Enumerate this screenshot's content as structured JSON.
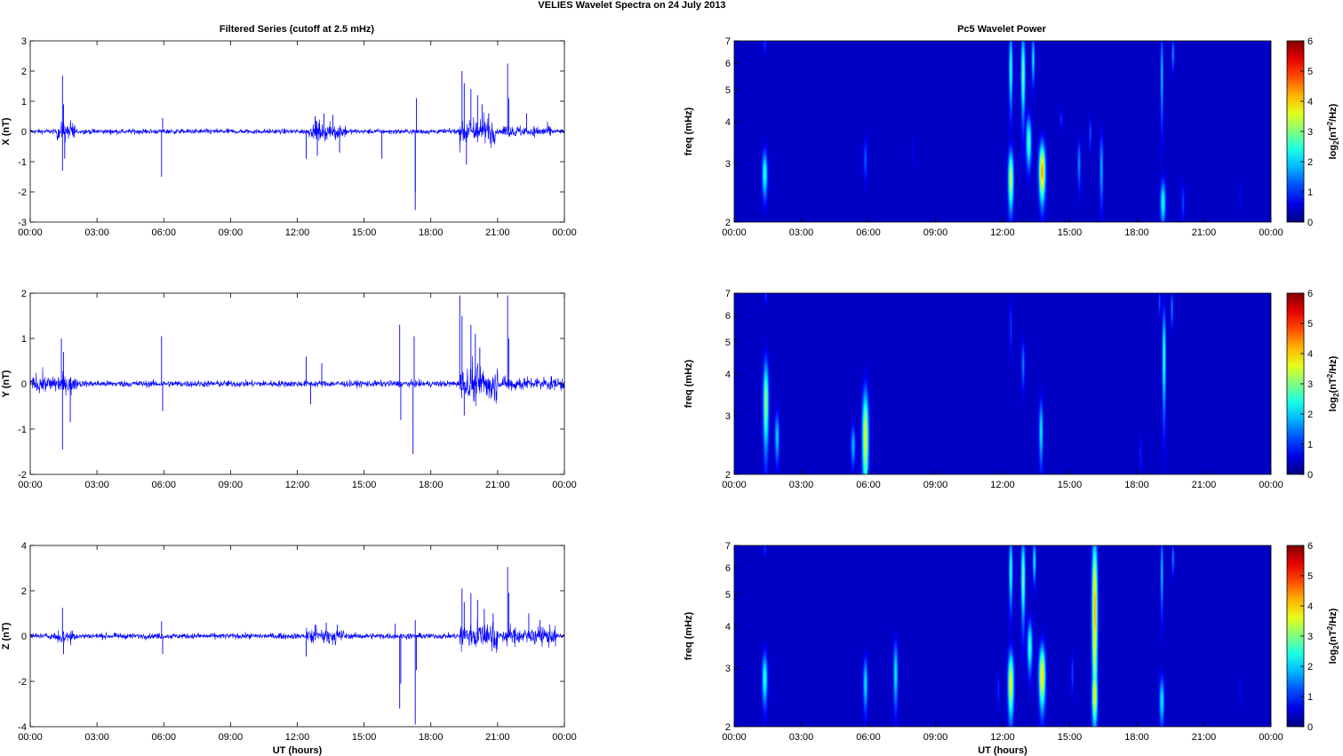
{
  "title": "VELIES Wavelet Spectra on 24 July      2013",
  "left_title": "Filtered Series (cutoff at 2.5 mHz)",
  "right_title": "Pc5 Wavelet Power",
  "colors": {
    "trace": "#0000ff",
    "background": "#00008f",
    "axis": "#000000"
  },
  "chart_data": [
    {
      "type": "line",
      "component": "X",
      "ylabel": "X (nT)",
      "xlabel": "",
      "ylim": [
        -3,
        3
      ],
      "yticks": [
        -3,
        -2,
        -1,
        0,
        1,
        2,
        3
      ],
      "xlim": [
        0,
        24
      ],
      "xticks": [
        "00:00",
        "03:00",
        "06:00",
        "09:00",
        "12:00",
        "15:00",
        "18:00",
        "21:00",
        "00:00"
      ],
      "noise_amplitude": 0.08,
      "spikes": [
        {
          "t": 1.45,
          "v": 1.85
        },
        {
          "t": 1.45,
          "v": -1.3
        },
        {
          "t": 1.5,
          "v": 0.9
        },
        {
          "t": 1.55,
          "v": -0.9
        },
        {
          "t": 5.9,
          "v": -1.5
        },
        {
          "t": 5.95,
          "v": 0.45
        },
        {
          "t": 12.4,
          "v": -0.9
        },
        {
          "t": 12.8,
          "v": 0.5
        },
        {
          "t": 13.2,
          "v": 0.6
        },
        {
          "t": 13.6,
          "v": 0.55
        },
        {
          "t": 13.9,
          "v": -0.7
        },
        {
          "t": 12.9,
          "v": -0.8
        },
        {
          "t": 15.8,
          "v": -0.9
        },
        {
          "t": 17.3,
          "v": -2.6
        },
        {
          "t": 17.3,
          "v": -2.0
        },
        {
          "t": 17.35,
          "v": 1.1
        },
        {
          "t": 19.4,
          "v": 2.0
        },
        {
          "t": 19.5,
          "v": 1.6
        },
        {
          "t": 19.6,
          "v": -1.1
        },
        {
          "t": 19.8,
          "v": 1.4
        },
        {
          "t": 20.1,
          "v": 1.2
        },
        {
          "t": 20.3,
          "v": 0.9
        },
        {
          "t": 20.6,
          "v": 0.6
        },
        {
          "t": 21.45,
          "v": 2.25
        },
        {
          "t": 21.5,
          "v": 1.1
        },
        {
          "t": 22.3,
          "v": 0.6
        }
      ],
      "bursts": [
        {
          "start": 1.2,
          "end": 2.0,
          "amp": 0.45
        },
        {
          "start": 12.5,
          "end": 14.2,
          "amp": 0.35
        },
        {
          "start": 19.3,
          "end": 20.9,
          "amp": 0.6
        },
        {
          "start": 21.2,
          "end": 23.5,
          "amp": 0.25
        }
      ]
    },
    {
      "type": "line",
      "component": "Y",
      "ylabel": "Y (nT)",
      "xlabel": "",
      "ylim": [
        -2,
        2
      ],
      "yticks": [
        -2,
        -1,
        0,
        1,
        2
      ],
      "xlim": [
        0,
        24
      ],
      "xticks": [
        "00:00",
        "03:00",
        "06:00",
        "09:00",
        "12:00",
        "15:00",
        "18:00",
        "21:00",
        "00:00"
      ],
      "noise_amplitude": 0.07,
      "spikes": [
        {
          "t": 1.4,
          "v": 1.0
        },
        {
          "t": 1.45,
          "v": -1.45
        },
        {
          "t": 1.5,
          "v": 0.7
        },
        {
          "t": 1.8,
          "v": -0.85
        },
        {
          "t": 5.9,
          "v": 1.05
        },
        {
          "t": 5.95,
          "v": -0.6
        },
        {
          "t": 12.4,
          "v": 0.6
        },
        {
          "t": 12.6,
          "v": -0.45
        },
        {
          "t": 13.1,
          "v": 0.45
        },
        {
          "t": 16.6,
          "v": 1.3
        },
        {
          "t": 16.65,
          "v": -0.8
        },
        {
          "t": 17.2,
          "v": -1.55
        },
        {
          "t": 17.25,
          "v": 1.05
        },
        {
          "t": 19.3,
          "v": 1.95
        },
        {
          "t": 19.4,
          "v": 1.5
        },
        {
          "t": 19.5,
          "v": -0.7
        },
        {
          "t": 19.8,
          "v": 1.3
        },
        {
          "t": 20.0,
          "v": 1.1
        },
        {
          "t": 20.2,
          "v": 0.8
        },
        {
          "t": 21.45,
          "v": 1.95
        },
        {
          "t": 21.5,
          "v": 1.0
        }
      ],
      "bursts": [
        {
          "start": 0.0,
          "end": 2.2,
          "amp": 0.25
        },
        {
          "start": 19.3,
          "end": 21.0,
          "amp": 0.55
        },
        {
          "start": 21.2,
          "end": 24.0,
          "amp": 0.2
        }
      ]
    },
    {
      "type": "line",
      "component": "Z",
      "ylabel": "Z (nT)",
      "xlabel": "UT (hours)",
      "ylim": [
        -4,
        4
      ],
      "yticks": [
        -4,
        -2,
        0,
        2,
        4
      ],
      "xlim": [
        0,
        24
      ],
      "xticks": [
        "00:00",
        "03:00",
        "06:00",
        "09:00",
        "12:00",
        "15:00",
        "18:00",
        "21:00",
        "00:00"
      ],
      "noise_amplitude": 0.12,
      "spikes": [
        {
          "t": 1.45,
          "v": 1.25
        },
        {
          "t": 1.5,
          "v": -0.8
        },
        {
          "t": 5.9,
          "v": 0.65
        },
        {
          "t": 5.95,
          "v": -0.8
        },
        {
          "t": 12.4,
          "v": -0.9
        },
        {
          "t": 12.8,
          "v": 0.5
        },
        {
          "t": 13.3,
          "v": 0.6
        },
        {
          "t": 13.8,
          "v": 0.5
        },
        {
          "t": 16.4,
          "v": 0.55
        },
        {
          "t": 16.6,
          "v": -3.2
        },
        {
          "t": 16.65,
          "v": -2.1
        },
        {
          "t": 17.3,
          "v": -3.9
        },
        {
          "t": 17.35,
          "v": -1.5
        },
        {
          "t": 17.3,
          "v": 0.7
        },
        {
          "t": 19.4,
          "v": 2.1
        },
        {
          "t": 19.5,
          "v": 1.5
        },
        {
          "t": 19.8,
          "v": 1.9
        },
        {
          "t": 20.1,
          "v": 1.6
        },
        {
          "t": 20.4,
          "v": 1.2
        },
        {
          "t": 20.8,
          "v": 1.0
        },
        {
          "t": 21.45,
          "v": 3.05
        },
        {
          "t": 21.5,
          "v": 1.9
        },
        {
          "t": 22.4,
          "v": 1.0
        },
        {
          "t": 22.9,
          "v": 0.7
        }
      ],
      "bursts": [
        {
          "start": 1.1,
          "end": 2.0,
          "amp": 0.5
        },
        {
          "start": 12.4,
          "end": 14.1,
          "amp": 0.45
        },
        {
          "start": 19.3,
          "end": 21.0,
          "amp": 0.9
        },
        {
          "start": 21.2,
          "end": 23.6,
          "amp": 0.5
        }
      ]
    },
    {
      "type": "heatmap",
      "component": "X",
      "ylabel": "freq (mHz)",
      "xlabel": "",
      "xlim": [
        0,
        24
      ],
      "ylim": [
        2,
        7
      ],
      "yscale": "log",
      "yticks": [
        2,
        3,
        4,
        5,
        6,
        7
      ],
      "xticks": [
        "00:00",
        "03:00",
        "06:00",
        "09:00",
        "12:00",
        "15:00",
        "18:00",
        "21:00",
        "00:00"
      ],
      "colorbar": {
        "label_base": "log",
        "label_sub": "2",
        "label_paren_open": "(nT",
        "label_sup": "2",
        "label_rest": "/Hz)",
        "range": [
          0,
          6
        ],
        "ticks": [
          0,
          1,
          2,
          3,
          4,
          5,
          6
        ]
      },
      "blobs": [
        {
          "t": 1.35,
          "f": 2.8,
          "tw": 0.12,
          "fw": 0.45,
          "p": 2.3
        },
        {
          "t": 1.35,
          "f": 6.9,
          "tw": 0.06,
          "fw": 0.5,
          "p": 0.8
        },
        {
          "t": 5.85,
          "f": 3.1,
          "tw": 0.08,
          "fw": 0.45,
          "p": 1.0
        },
        {
          "t": 7.95,
          "f": 3.3,
          "tw": 0.05,
          "fw": 0.4,
          "p": 0.4
        },
        {
          "t": 12.35,
          "f": 2.7,
          "tw": 0.12,
          "fw": 0.55,
          "p": 3.3
        },
        {
          "t": 12.35,
          "f": 5.8,
          "tw": 0.08,
          "fw": 1.5,
          "p": 2.4
        },
        {
          "t": 12.9,
          "f": 5.6,
          "tw": 0.09,
          "fw": 1.6,
          "p": 2.8
        },
        {
          "t": 13.15,
          "f": 3.5,
          "tw": 0.12,
          "fw": 0.6,
          "p": 2.6
        },
        {
          "t": 13.35,
          "f": 6.2,
          "tw": 0.07,
          "fw": 1.0,
          "p": 2.0
        },
        {
          "t": 13.75,
          "f": 2.85,
          "tw": 0.14,
          "fw": 0.55,
          "p": 4.3
        },
        {
          "t": 14.6,
          "f": 4.1,
          "tw": 0.05,
          "fw": 0.3,
          "p": 0.8
        },
        {
          "t": 15.4,
          "f": 3.0,
          "tw": 0.07,
          "fw": 0.5,
          "p": 1.4
        },
        {
          "t": 15.9,
          "f": 3.7,
          "tw": 0.05,
          "fw": 0.4,
          "p": 1.1
        },
        {
          "t": 16.4,
          "f": 2.9,
          "tw": 0.08,
          "fw": 0.7,
          "p": 1.6
        },
        {
          "t": 19.15,
          "f": 2.3,
          "tw": 0.12,
          "fw": 0.35,
          "p": 2.2
        },
        {
          "t": 19.1,
          "f": 5.5,
          "tw": 0.06,
          "fw": 1.7,
          "p": 1.8
        },
        {
          "t": 19.6,
          "f": 6.4,
          "tw": 0.05,
          "fw": 0.7,
          "p": 1.5
        },
        {
          "t": 20.05,
          "f": 2.3,
          "tw": 0.07,
          "fw": 0.3,
          "p": 0.9
        },
        {
          "t": 22.6,
          "f": 2.4,
          "tw": 0.04,
          "fw": 0.3,
          "p": 0.5
        }
      ]
    },
    {
      "type": "heatmap",
      "component": "Y",
      "ylabel": "freq (mHz)",
      "xlabel": "",
      "xlim": [
        0,
        24
      ],
      "ylim": [
        2,
        7
      ],
      "yscale": "log",
      "yticks": [
        2,
        3,
        4,
        5,
        6,
        7
      ],
      "xticks": [
        "00:00",
        "03:00",
        "06:00",
        "09:00",
        "12:00",
        "15:00",
        "18:00",
        "21:00",
        "00:00"
      ],
      "colorbar": {
        "label_base": "log",
        "label_sub": "2",
        "label_paren_open": "(nT",
        "label_sup": "2",
        "label_rest": "/Hz)",
        "range": [
          0,
          6
        ],
        "ticks": [
          0,
          1,
          2,
          3,
          4,
          5,
          6
        ]
      },
      "blobs": [
        {
          "t": 1.4,
          "f": 3.3,
          "tw": 0.12,
          "fw": 1.0,
          "p": 3.0
        },
        {
          "t": 1.4,
          "f": 6.9,
          "tw": 0.06,
          "fw": 0.4,
          "p": 0.8
        },
        {
          "t": 1.9,
          "f": 2.6,
          "tw": 0.1,
          "fw": 0.45,
          "p": 1.8
        },
        {
          "t": 5.3,
          "f": 2.45,
          "tw": 0.1,
          "fw": 0.35,
          "p": 1.6
        },
        {
          "t": 5.85,
          "f": 2.6,
          "tw": 0.14,
          "fw": 0.9,
          "p": 3.5
        },
        {
          "t": 12.35,
          "f": 5.6,
          "tw": 0.05,
          "fw": 1.0,
          "p": 0.9
        },
        {
          "t": 12.9,
          "f": 4.3,
          "tw": 0.07,
          "fw": 0.7,
          "p": 1.3
        },
        {
          "t": 13.7,
          "f": 2.7,
          "tw": 0.09,
          "fw": 0.6,
          "p": 2.0
        },
        {
          "t": 18.15,
          "f": 2.3,
          "tw": 0.05,
          "fw": 0.3,
          "p": 0.7
        },
        {
          "t": 19.2,
          "f": 4.5,
          "tw": 0.08,
          "fw": 1.6,
          "p": 2.4
        },
        {
          "t": 19.55,
          "f": 6.3,
          "tw": 0.05,
          "fw": 0.8,
          "p": 1.4
        },
        {
          "t": 19.0,
          "f": 6.6,
          "tw": 0.04,
          "fw": 0.6,
          "p": 1.2
        }
      ]
    },
    {
      "type": "heatmap",
      "component": "Z",
      "ylabel": "freq (mHz)",
      "xlabel": "UT (hours)",
      "xlim": [
        0,
        24
      ],
      "ylim": [
        2,
        7
      ],
      "yscale": "log",
      "yticks": [
        2,
        3,
        4,
        5,
        6,
        7
      ],
      "xticks": [
        "00:00",
        "03:00",
        "06:00",
        "09:00",
        "12:00",
        "15:00",
        "18:00",
        "21:00",
        "00:00"
      ],
      "colorbar": {
        "label_base": "log",
        "label_sub": "2",
        "label_paren_open": "(nT",
        "label_sup": "2",
        "label_rest": "/Hz)",
        "range": [
          0,
          6
        ],
        "ticks": [
          0,
          1,
          2,
          3,
          4,
          5,
          6
        ]
      },
      "blobs": [
        {
          "t": 1.35,
          "f": 2.8,
          "tw": 0.12,
          "fw": 0.5,
          "p": 2.3
        },
        {
          "t": 1.35,
          "f": 6.9,
          "tw": 0.06,
          "fw": 0.4,
          "p": 0.8
        },
        {
          "t": 5.85,
          "f": 2.7,
          "tw": 0.1,
          "fw": 0.5,
          "p": 1.9
        },
        {
          "t": 7.2,
          "f": 2.9,
          "tw": 0.1,
          "fw": 0.65,
          "p": 2.0
        },
        {
          "t": 11.8,
          "f": 2.6,
          "tw": 0.05,
          "fw": 0.3,
          "p": 0.8
        },
        {
          "t": 12.35,
          "f": 2.7,
          "tw": 0.13,
          "fw": 0.6,
          "p": 3.6
        },
        {
          "t": 12.35,
          "f": 5.9,
          "tw": 0.08,
          "fw": 1.4,
          "p": 2.4
        },
        {
          "t": 12.9,
          "f": 5.6,
          "tw": 0.09,
          "fw": 1.6,
          "p": 2.8
        },
        {
          "t": 13.2,
          "f": 3.5,
          "tw": 0.11,
          "fw": 0.6,
          "p": 2.5
        },
        {
          "t": 13.4,
          "f": 6.3,
          "tw": 0.07,
          "fw": 0.9,
          "p": 2.1
        },
        {
          "t": 13.75,
          "f": 2.85,
          "tw": 0.14,
          "fw": 0.6,
          "p": 3.9
        },
        {
          "t": 15.1,
          "f": 2.9,
          "tw": 0.05,
          "fw": 0.4,
          "p": 1.0
        },
        {
          "t": 16.1,
          "f": 4.5,
          "tw": 0.12,
          "fw": 2.6,
          "p": 4.2
        },
        {
          "t": 16.1,
          "f": 2.5,
          "tw": 0.12,
          "fw": 0.5,
          "p": 3.8
        },
        {
          "t": 19.1,
          "f": 2.4,
          "tw": 0.11,
          "fw": 0.4,
          "p": 2.0
        },
        {
          "t": 19.1,
          "f": 5.8,
          "tw": 0.06,
          "fw": 1.5,
          "p": 1.8
        },
        {
          "t": 19.6,
          "f": 6.4,
          "tw": 0.05,
          "fw": 0.7,
          "p": 1.4
        },
        {
          "t": 22.6,
          "f": 2.6,
          "tw": 0.04,
          "fw": 0.3,
          "p": 0.5
        }
      ]
    }
  ]
}
